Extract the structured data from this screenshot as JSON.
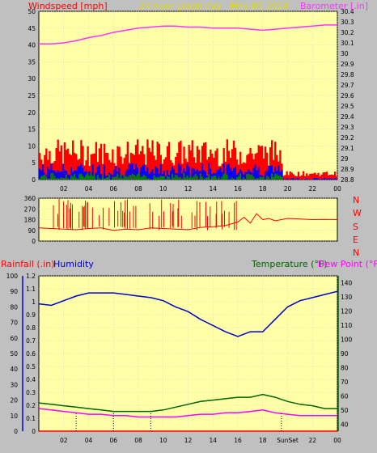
{
  "header": {
    "windspeed_label": "Windspeed [mph]",
    "graph_title": "24 hour graph day : May 03 2024",
    "barometer_label": "Barometer [.in]"
  },
  "middle": {
    "direction_labels": [
      "N",
      "W",
      "S",
      "E",
      "N"
    ]
  },
  "bottom": {
    "rainfall_label": "Rainfall (.in)",
    "humidity_label": "Humidity",
    "temperature_label": "Temperature (°F)",
    "dewpoint_label": "Dew Point (°F)",
    "sunset_label": "SunSet"
  },
  "colors": {
    "plot_bg": "#ffffa8",
    "frame_bg": "#c0c0c0",
    "windspeed": "#ff0000",
    "wind_avg": "#0000ff",
    "wind_low": "#008000",
    "barometer": "#ff33ff",
    "direction": "#ff0000",
    "rainfall": "#ff0000",
    "humidity": "#0000cc",
    "temperature": "#006400",
    "dewpoint": "#ff00ff",
    "title": "#dddd00"
  },
  "chart_data": [
    {
      "type": "line",
      "title": "24 hour graph day : May 03 2024",
      "x_ticks": [
        "02",
        "04",
        "06",
        "08",
        "10",
        "12",
        "14",
        "16",
        "18",
        "20",
        "22",
        "00"
      ],
      "left_axis": {
        "label": "Windspeed [mph]",
        "ylim": [
          0,
          50
        ],
        "ticks": [
          0,
          5,
          10,
          15,
          20,
          25,
          30,
          35,
          40,
          45,
          50
        ]
      },
      "right_axis": {
        "label": "Barometer [.in]",
        "ylim": [
          28.8,
          30.4
        ],
        "ticks": [
          "28.8",
          "28.9",
          "29",
          "29.1",
          "29.2",
          "29.3",
          "29.4",
          "29.5",
          "29.6",
          "29.7",
          "29.8",
          "29.9",
          "30",
          "30.1",
          "30.2",
          "30.3",
          "30.4"
        ]
      },
      "series": [
        {
          "name": "Barometer [.in]",
          "axis": "right",
          "x": [
            0,
            1,
            2,
            3,
            4,
            5,
            6,
            7,
            8,
            9,
            10,
            11,
            12,
            13,
            14,
            15,
            16,
            17,
            18,
            19,
            20,
            21,
            22,
            23,
            24
          ],
          "values": [
            30.09,
            30.09,
            30.1,
            30.12,
            30.15,
            30.17,
            30.2,
            30.22,
            30.24,
            30.25,
            30.26,
            30.26,
            30.25,
            30.25,
            30.24,
            30.24,
            30.24,
            30.23,
            30.22,
            30.23,
            30.24,
            30.25,
            30.26,
            30.27,
            30.27
          ]
        }
      ],
      "wind_band": {
        "gust_range": [
          4,
          12
        ],
        "avg_range": [
          1,
          5
        ],
        "low_range": [
          0,
          2
        ],
        "end_hour": 19.5,
        "tail_value": 1
      }
    },
    {
      "type": "line",
      "title": "",
      "y_axis": {
        "ylim": [
          0,
          360
        ],
        "ticks": [
          0,
          90,
          180,
          270,
          360
        ]
      },
      "right_labels": [
        "N",
        "W",
        "S",
        "E",
        "N"
      ],
      "series": [
        {
          "name": "",
          "x": [
            0,
            1,
            2,
            3,
            4,
            5,
            6,
            7,
            8,
            9,
            10,
            11,
            12,
            13,
            14,
            15,
            16,
            16.5,
            17,
            17.5,
            18,
            18.5,
            19,
            20,
            21,
            22,
            23,
            24
          ],
          "values": [
            110,
            105,
            100,
            95,
            105,
            110,
            90,
            100,
            95,
            110,
            105,
            100,
            95,
            115,
            120,
            130,
            160,
            200,
            150,
            230,
            180,
            190,
            170,
            190,
            185,
            180,
            182,
            180
          ]
        }
      ]
    },
    {
      "type": "line",
      "title": "",
      "left_axis_rain": {
        "label": "Rainfall (.in)",
        "ylim": [
          0,
          1.2
        ],
        "ticks": [
          "0",
          "0.1",
          "0.2",
          "0.3",
          "0.4",
          "0.5",
          "0.6",
          "0.7",
          "0.8",
          "0.9",
          "1",
          "1.1",
          "1.2"
        ]
      },
      "left_axis_humidity": {
        "label": "Humidity",
        "ylim": [
          0,
          100
        ],
        "ticks": [
          0,
          10,
          20,
          30,
          40,
          50,
          60,
          70,
          80,
          90,
          100
        ]
      },
      "right_axis": {
        "label": "Temperature (°F)",
        "ylim": [
          35,
          145
        ],
        "ticks": [
          40,
          50,
          60,
          70,
          80,
          90,
          100,
          110,
          120,
          130,
          140
        ]
      },
      "x_ticks": [
        "02",
        "04",
        "06",
        "08",
        "10",
        "12",
        "14",
        "16",
        "18",
        "SunSet",
        "22",
        "00"
      ],
      "series": [
        {
          "name": "Humidity",
          "axis": "humidity",
          "x": [
            0,
            1,
            2,
            3,
            4,
            5,
            6,
            7,
            8,
            9,
            10,
            11,
            12,
            13,
            14,
            15,
            16,
            17,
            18,
            19,
            20,
            21,
            22,
            23,
            24
          ],
          "values": [
            82,
            81,
            84,
            87,
            89,
            89,
            89,
            88,
            87,
            86,
            84,
            80,
            77,
            72,
            68,
            64,
            61,
            64,
            64,
            72,
            80,
            84,
            86,
            88,
            90
          ]
        },
        {
          "name": "Temperature (°F)",
          "axis": "right",
          "x": [
            0,
            1,
            2,
            3,
            4,
            5,
            6,
            7,
            8,
            9,
            10,
            11,
            12,
            13,
            14,
            15,
            16,
            17,
            18,
            19,
            20,
            21,
            22,
            23,
            24
          ],
          "values": [
            55,
            54,
            53,
            52,
            51,
            50,
            49,
            49,
            49,
            49,
            50,
            52,
            54,
            56,
            57,
            58,
            59,
            59,
            61,
            59,
            56,
            54,
            53,
            51,
            51
          ]
        },
        {
          "name": "Dew Point (°F)",
          "axis": "right",
          "x": [
            0,
            1,
            2,
            3,
            4,
            5,
            6,
            7,
            8,
            9,
            10,
            11,
            12,
            13,
            14,
            15,
            16,
            17,
            18,
            19,
            20,
            21,
            22,
            23,
            24
          ],
          "values": [
            51,
            50,
            49,
            48,
            47,
            47,
            46,
            46,
            45,
            45,
            45,
            45,
            46,
            47,
            47,
            48,
            48,
            49,
            50,
            48,
            47,
            46,
            46,
            46,
            46
          ]
        },
        {
          "name": "Rainfall (.in)",
          "axis": "rain",
          "x": [
            0,
            24
          ],
          "values": [
            0,
            0
          ]
        }
      ],
      "markers_hours": [
        3,
        6,
        9,
        19.5
      ]
    }
  ]
}
